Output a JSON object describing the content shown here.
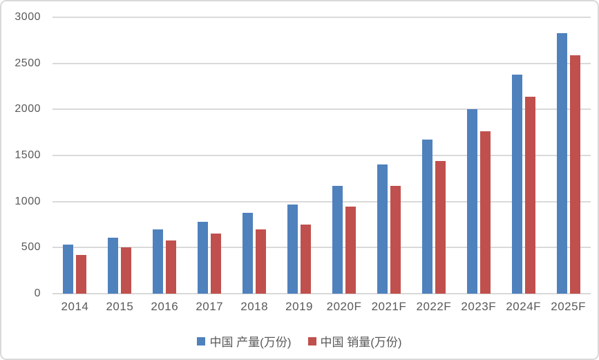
{
  "chart_data": {
    "type": "bar",
    "categories": [
      "2014",
      "2015",
      "2016",
      "2017",
      "2018",
      "2019",
      "2020F",
      "2021F",
      "2022F",
      "2023F",
      "2024F",
      "2025F"
    ],
    "series": [
      {
        "name": "中国 产量(万份)",
        "color": "#4F81BD",
        "values": [
          530,
          610,
          695,
          780,
          875,
          965,
          1170,
          1400,
          1670,
          2000,
          2380,
          2825
        ]
      },
      {
        "name": "中国 销量(万份)",
        "color": "#C0504D",
        "values": [
          420,
          500,
          575,
          650,
          700,
          750,
          945,
          1170,
          1440,
          1765,
          2135,
          2585
        ]
      }
    ],
    "title": "",
    "xlabel": "",
    "ylabel": "",
    "ylim": [
      0,
      3000
    ],
    "ytick_interval": 500,
    "yticks": [
      "3000",
      "2500",
      "2000",
      "1500",
      "1000",
      "500",
      "0"
    ],
    "grid": true,
    "legend_position": "bottom"
  },
  "colors": {
    "gridline": "#d9d9d9",
    "axis_text": "#595959",
    "border": "#d9d9d9",
    "background": "#ffffff",
    "series1": "#4F81BD",
    "series2": "#C0504D"
  }
}
